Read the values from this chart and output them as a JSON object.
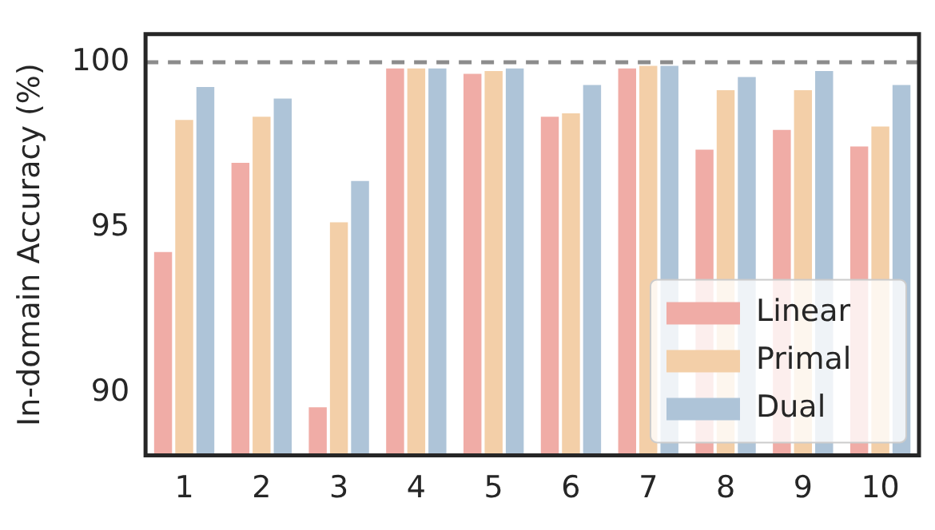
{
  "chart_data": {
    "type": "bar",
    "ylabel": "In-domain Accuracy (%)",
    "categories": [
      "1",
      "2",
      "3",
      "4",
      "5",
      "6",
      "7",
      "8",
      "9",
      "10"
    ],
    "series": [
      {
        "name": "Linear",
        "color": "#f0aca6",
        "values": [
          94.3,
          97.0,
          89.6,
          99.86,
          99.7,
          98.4,
          99.86,
          97.4,
          98.0,
          97.5
        ]
      },
      {
        "name": "Primal",
        "color": "#f3cfa8",
        "values": [
          98.3,
          98.4,
          95.2,
          99.86,
          99.78,
          98.5,
          99.94,
          99.2,
          99.2,
          98.1
        ]
      },
      {
        "name": "Dual",
        "color": "#aec4d8",
        "values": [
          99.3,
          98.95,
          96.45,
          99.86,
          99.86,
          99.36,
          99.94,
          99.6,
          99.78,
          99.36
        ]
      }
    ],
    "ylim": [
      88.1,
      100.85
    ],
    "yticks": [
      90,
      95,
      100
    ],
    "ref_lines": [
      {
        "axis": "y",
        "value": 100,
        "color": "#8c8c8c",
        "line_style": "dashed"
      }
    ],
    "legend": "bottom right",
    "grid": false
  }
}
